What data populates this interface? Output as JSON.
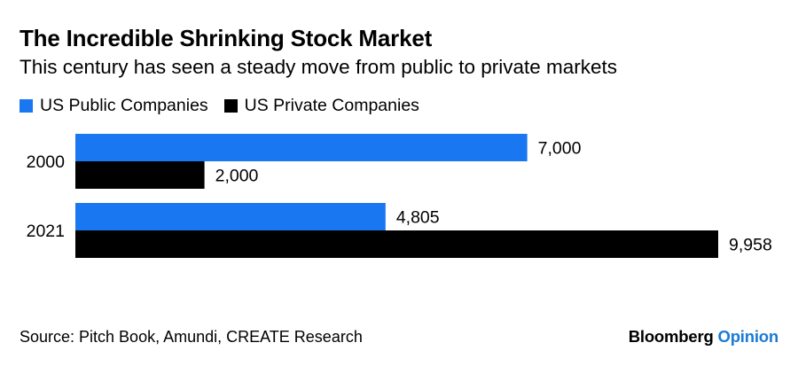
{
  "chart_data": {
    "type": "bar",
    "orientation": "horizontal",
    "title": "The Incredible Shrinking Stock Market",
    "subtitle": "This century has seen a steady move from public to private markets",
    "categories": [
      "2000",
      "2021"
    ],
    "series": [
      {
        "name": "US Public Companies",
        "color": "#1a77f2",
        "values": [
          7000,
          4805
        ],
        "labels": [
          "7,000",
          "4,805"
        ]
      },
      {
        "name": "US Private Companies",
        "color": "#000000",
        "values": [
          2000,
          9958
        ],
        "labels": [
          "2,000",
          "9,958"
        ]
      }
    ],
    "xlim": [
      0,
      9958
    ],
    "xlabel": "",
    "ylabel": "",
    "grid": false,
    "legend_position": "top-left"
  },
  "footer": {
    "source": "Source: Pitch Book, Amundi, CREATE Research",
    "brand": "Bloomberg",
    "brand_suffix": "Opinion"
  }
}
